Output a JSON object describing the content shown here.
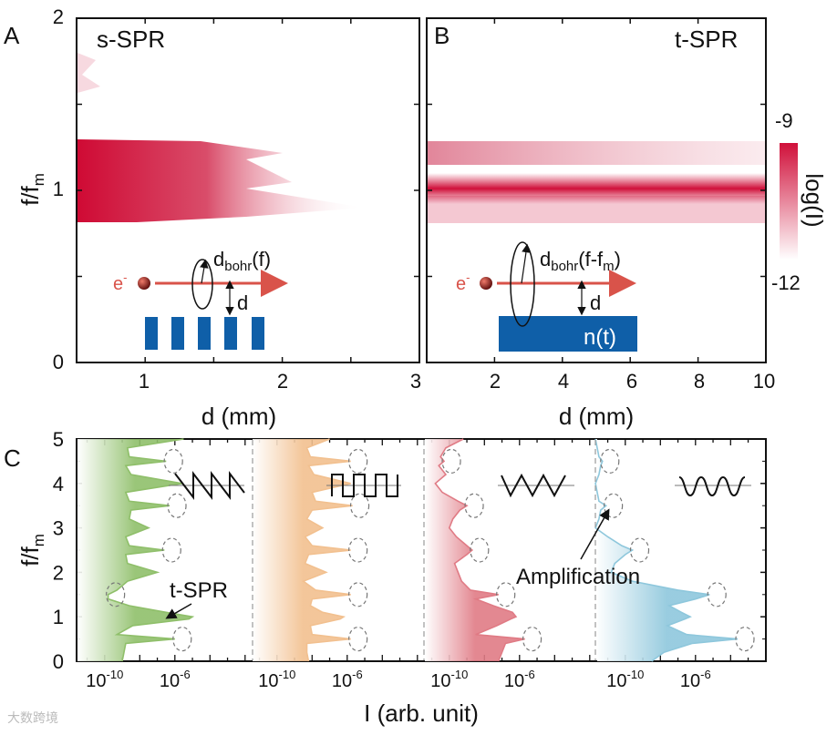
{
  "chart_data": [
    {
      "panel": "A",
      "type": "heatmap",
      "title": "s-SPR",
      "xlabel": "d (mm)",
      "ylabel": "f/f_m",
      "xlim": [
        0.5,
        3
      ],
      "ylim": [
        0,
        2
      ],
      "xticks": [
        "1",
        "2",
        "3"
      ],
      "yticks": [
        "0",
        "1",
        "2"
      ],
      "bands": [
        {
          "f_low": 0.78,
          "f_high": 1.27,
          "fade_end_d": [
            2.05,
            2.7
          ],
          "peak_log_I": -9
        },
        {
          "f_low": 1.55,
          "f_high": 1.75,
          "fade_end_d": [
            0.75,
            0.75
          ],
          "peak_log_I": -11.5
        }
      ],
      "inset": {
        "electron": "e",
        "electron_sup": "-",
        "bohr": "d",
        "bohr_sub": "bohr",
        "bohr_arg": "(f)",
        "distance": "d"
      }
    },
    {
      "panel": "B",
      "type": "heatmap",
      "title": "t-SPR",
      "xlabel": "d (mm)",
      "ylabel": "",
      "xlim": [
        0,
        10
      ],
      "ylim": [
        0,
        2
      ],
      "xticks": [
        "2",
        "4",
        "6",
        "8",
        "10"
      ],
      "bands": [
        {
          "f_center": 1.0,
          "width": 0.08,
          "log_I": -9
        },
        {
          "f_center": 1.2,
          "width": 0.1,
          "log_I": -10.5
        },
        {
          "f_center": 0.85,
          "width": 0.1,
          "log_I": -10.8
        }
      ],
      "inset": {
        "electron": "e",
        "electron_sup": "-",
        "bohr": "d",
        "bohr_sub": "bohr",
        "bohr_arg1": "(f-f",
        "bohr_arg_sub": "m",
        "bohr_arg2": ")",
        "distance": "d",
        "modulation": "n(t)"
      },
      "colorbar": {
        "label": "log(I)",
        "max": "-9",
        "min": "-12",
        "color_max": "#d0103a",
        "color_min": "#ffffff"
      }
    },
    {
      "panel": "C",
      "type": "area",
      "ylabel": "f/f_m",
      "xlabel": "I (arb. unit)",
      "ylim": [
        0,
        5
      ],
      "yticks": [
        "0",
        "1",
        "2",
        "3",
        "4",
        "5"
      ],
      "xtick_base": "10",
      "xticks_exp": [
        "-10",
        "-6"
      ],
      "xlim_log": [
        -11.6,
        -1.6
      ],
      "f": [
        0,
        0.2,
        0.4,
        0.5,
        0.6,
        0.8,
        0.95,
        1.0,
        1.1,
        1.25,
        1.4,
        1.5,
        1.6,
        1.8,
        2.0,
        2.2,
        2.4,
        2.5,
        2.6,
        2.8,
        3.0,
        3.2,
        3.4,
        3.5,
        3.6,
        3.8,
        4.0,
        4.2,
        4.4,
        4.5,
        4.6,
        4.8,
        5.0
      ],
      "series": [
        {
          "name": "sawtooth",
          "color": "#8fbf6a",
          "log_I": [
            -9.0,
            -8.9,
            -8.8,
            -6.0,
            -9.3,
            -8.4,
            -5.2,
            -5.0,
            -6.5,
            -8.6,
            -9.8,
            -9.8,
            -9.3,
            -8.7,
            -7.0,
            -8.7,
            -8.8,
            -6.6,
            -8.6,
            -8.8,
            -7.5,
            -8.6,
            -8.5,
            -6.3,
            -8.6,
            -8.8,
            -5.6,
            -8.5,
            -8.8,
            -6.5,
            -8.6,
            -8.7,
            -5.5
          ]
        },
        {
          "name": "square",
          "color": "#f2c08f",
          "log_I": [
            -8.2,
            -8.3,
            -8.3,
            -5.8,
            -8.0,
            -8.1,
            -6.4,
            -6.2,
            -7.4,
            -8.1,
            -8.0,
            -5.8,
            -7.8,
            -8.5,
            -7.2,
            -8.4,
            -8.2,
            -5.8,
            -8.0,
            -8.4,
            -7.4,
            -8.3,
            -8.0,
            -5.7,
            -7.8,
            -8.0,
            -5.8,
            -7.9,
            -8.2,
            -5.8,
            -8.1,
            -8.3,
            -7.0
          ]
        },
        {
          "name": "triangle",
          "color": "#e07b85",
          "log_I": [
            -7.2,
            -7.0,
            -6.8,
            -5.7,
            -8.5,
            -7.3,
            -6.5,
            -6.2,
            -6.4,
            -7.5,
            -8.5,
            -7.2,
            -8.8,
            -9.3,
            -9.5,
            -9.7,
            -9.0,
            -8.7,
            -9.0,
            -9.6,
            -10.0,
            -9.8,
            -9.4,
            -9.0,
            -9.5,
            -10.4,
            -10.8,
            -10.2,
            -10.6,
            -10.3,
            -10.5,
            -10.2,
            -9.2
          ]
        },
        {
          "name": "sine",
          "color": "#8ec7dc",
          "log_I": [
            -8.5,
            -7.8,
            -6.2,
            -3.6,
            -6.5,
            -7.6,
            -6.6,
            -6.3,
            -6.8,
            -7.5,
            -6.0,
            -5.2,
            -7.0,
            -9.6,
            -10.8,
            -10.6,
            -10.0,
            -9.6,
            -10.2,
            -11.0,
            -11.7,
            -11.5,
            -11.4,
            -11.1,
            -11.5,
            -11.6,
            -11.7,
            -11.5,
            -11.4,
            -11.3,
            -11.5,
            -11.6,
            -11.7
          ]
        }
      ],
      "annotations": {
        "tspr": "t-SPR",
        "amplification": "Amplification"
      },
      "highlighted_f": [
        0.5,
        1.5,
        2.5,
        3.5,
        4.5
      ]
    }
  ],
  "panel_labels": {
    "a": "A",
    "b": "B",
    "c": "C"
  },
  "watermark": "大数跨境"
}
